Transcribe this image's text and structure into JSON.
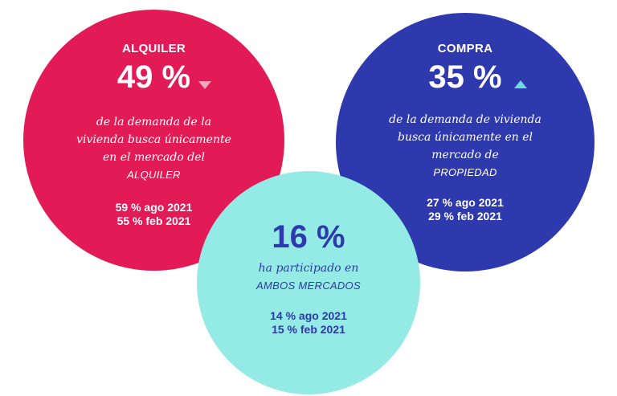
{
  "alquiler": {
    "label": "ALQUILER",
    "value": "49 %",
    "trend_icon": "triangle-down-icon",
    "desc_lines": [
      "de la demanda de la",
      "vivienda busca únicamente",
      "en el mercado del"
    ],
    "highlight": "ALQUILER",
    "history": [
      "59 % ago 2021",
      "55 % feb 2021"
    ],
    "color": "#e21b56",
    "trend_color": "#f3a6c0"
  },
  "compra": {
    "label": "COMPRA",
    "value": "35 %",
    "trend_icon": "triangle-up-icon",
    "desc_lines": [
      "de la demanda de vivienda",
      "busca únicamente en el",
      "mercado de"
    ],
    "highlight": "PROPIEDAD",
    "history": [
      "27 % ago 2021",
      "29 % feb 2021"
    ],
    "color": "#2d39ad",
    "trend_color": "#6fd9dc"
  },
  "ambos": {
    "value": "16 %",
    "desc_lines": [
      "ha participado en"
    ],
    "highlight": "AMBOS MERCADOS",
    "history": [
      "14 % ago 2021",
      "15 % feb 2021"
    ],
    "color": "#94eae4"
  }
}
